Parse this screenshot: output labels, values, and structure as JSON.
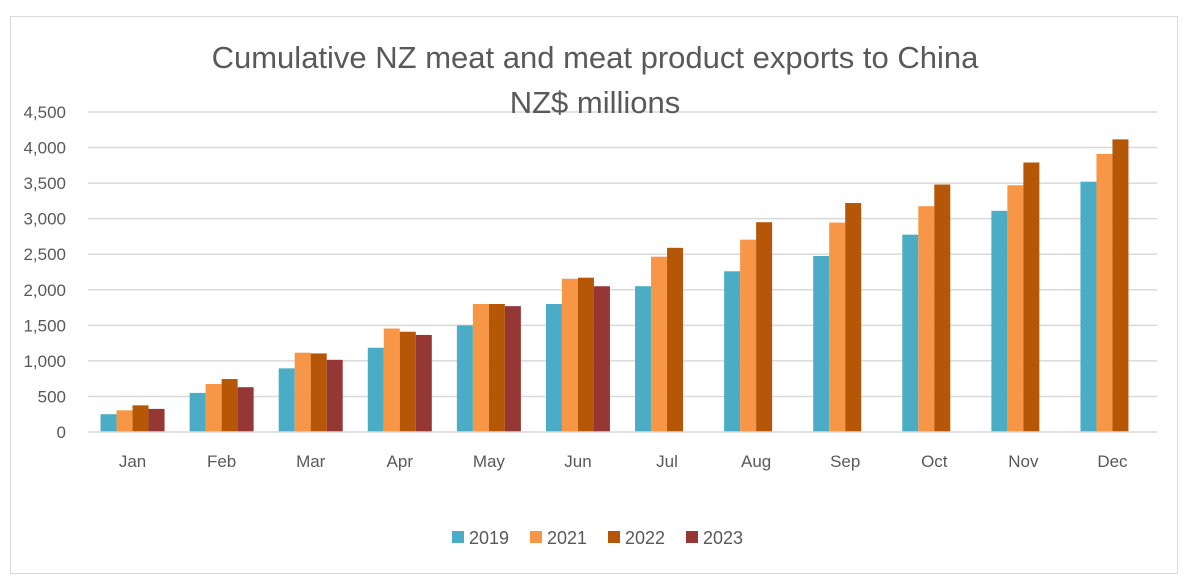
{
  "chart_data": {
    "type": "bar",
    "title": "Cumulative NZ meat and meat product exports to China",
    "subtitle": "NZ$ millions",
    "xlabel": "",
    "ylabel": "",
    "ylim": [
      0,
      4500
    ],
    "yticks": [
      0,
      500,
      1000,
      1500,
      2000,
      2500,
      3000,
      3500,
      4000,
      4500
    ],
    "ytick_labels": [
      "0",
      "500",
      "1,000",
      "1,500",
      "2,000",
      "2,500",
      "3,000",
      "3,500",
      "4,000",
      "4,500"
    ],
    "grid": true,
    "legend_position": "bottom",
    "categories": [
      "Jan",
      "Feb",
      "Mar",
      "Apr",
      "May",
      "Jun",
      "Jul",
      "Aug",
      "Sep",
      "Oct",
      "Nov",
      "Dec"
    ],
    "series": [
      {
        "name": "2019",
        "color": "#4BACC6",
        "values": [
          250,
          550,
          895,
          1185,
          1500,
          1800,
          2050,
          2260,
          2475,
          2775,
          3110,
          3520
        ]
      },
      {
        "name": "2021",
        "color": "#F79646",
        "values": [
          305,
          675,
          1115,
          1455,
          1800,
          2155,
          2465,
          2705,
          2945,
          3175,
          3470,
          3910
        ]
      },
      {
        "name": "2022",
        "color": "#B65708",
        "values": [
          375,
          745,
          1105,
          1410,
          1800,
          2170,
          2590,
          2950,
          3220,
          3480,
          3790,
          4115
        ]
      },
      {
        "name": "2023",
        "color": "#953735",
        "values": [
          325,
          630,
          1015,
          1365,
          1770,
          2050,
          null,
          null,
          null,
          null,
          null,
          null
        ]
      }
    ]
  }
}
